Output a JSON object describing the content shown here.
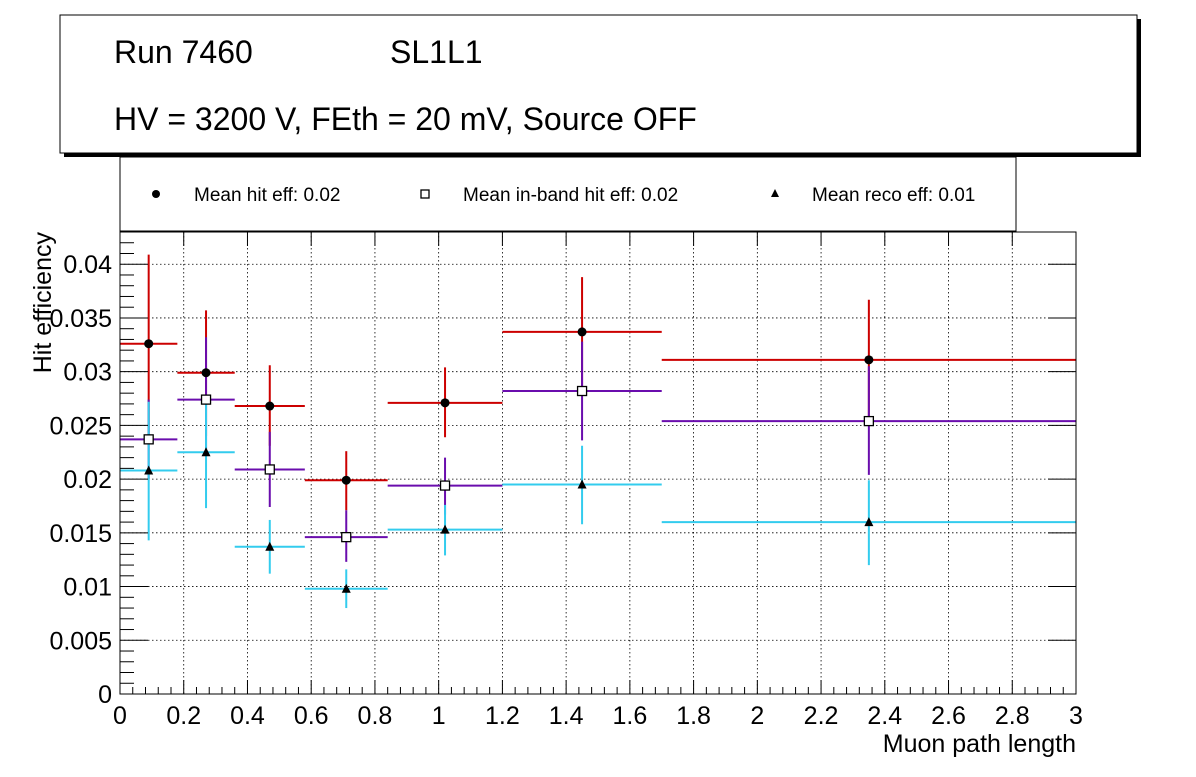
{
  "header": {
    "run_label": "Run 7460",
    "layer_label": "SL1L1",
    "conditions": "HV = 3200 V, FEth = 20 mV, Source OFF"
  },
  "legend": {
    "hit": "Mean hit  eff: 0.02",
    "inband": "Mean in-band hit eff: 0.02",
    "reco": "Mean reco eff: 0.01"
  },
  "chart_data": {
    "type": "scatter",
    "xlabel": "Muon path length",
    "ylabel": "Hit efficiency",
    "xlim": [
      0,
      3
    ],
    "ylim": [
      0,
      0.043
    ],
    "grid": true,
    "xticks": [
      "0",
      "0.2",
      "0.4",
      "0.6",
      "0.8",
      "1",
      "1.2",
      "1.4",
      "1.6",
      "1.8",
      "2",
      "2.2",
      "2.4",
      "2.6",
      "2.8",
      "3"
    ],
    "xtick_values": [
      0,
      0.2,
      0.4,
      0.6,
      0.8,
      1,
      1.2,
      1.4,
      1.6,
      1.8,
      2,
      2.2,
      2.4,
      2.6,
      2.8,
      3
    ],
    "yticks": [
      "0",
      "0.005",
      "0.01",
      "0.015",
      "0.02",
      "0.025",
      "0.03",
      "0.035",
      "0.04"
    ],
    "ytick_values": [
      0,
      0.005,
      0.01,
      0.015,
      0.02,
      0.025,
      0.03,
      0.035,
      0.04
    ],
    "series": [
      {
        "name": "Mean hit  eff: 0.02",
        "marker": "circle",
        "color": "#cc0000",
        "points": [
          {
            "x": 0.09,
            "xlo": 0.0,
            "xhi": 0.18,
            "y": 0.0326,
            "ylo": 0.0242,
            "yhi": 0.0409
          },
          {
            "x": 0.27,
            "xlo": 0.18,
            "xhi": 0.36,
            "y": 0.0299,
            "ylo": 0.024,
            "yhi": 0.0357
          },
          {
            "x": 0.47,
            "xlo": 0.36,
            "xhi": 0.58,
            "y": 0.0268,
            "ylo": 0.0231,
            "yhi": 0.0306
          },
          {
            "x": 0.71,
            "xlo": 0.58,
            "xhi": 0.84,
            "y": 0.0199,
            "ylo": 0.0171,
            "yhi": 0.0226
          },
          {
            "x": 1.02,
            "xlo": 0.84,
            "xhi": 1.2,
            "y": 0.0271,
            "ylo": 0.0239,
            "yhi": 0.0304
          },
          {
            "x": 1.45,
            "xlo": 1.2,
            "xhi": 1.7,
            "y": 0.0337,
            "ylo": 0.0285,
            "yhi": 0.0388
          },
          {
            "x": 2.35,
            "xlo": 1.7,
            "xhi": 3.0,
            "y": 0.0311,
            "ylo": 0.0255,
            "yhi": 0.0367
          }
        ]
      },
      {
        "name": "Mean in-band hit eff: 0.02",
        "marker": "open-square",
        "color": "#6a0dad",
        "points": [
          {
            "x": 0.09,
            "xlo": 0.0,
            "xhi": 0.18,
            "y": 0.0237,
            "ylo": 0.02,
            "yhi": 0.0274
          },
          {
            "x": 0.27,
            "xlo": 0.18,
            "xhi": 0.36,
            "y": 0.0274,
            "ylo": 0.0227,
            "yhi": 0.0332
          },
          {
            "x": 0.47,
            "xlo": 0.36,
            "xhi": 0.58,
            "y": 0.0209,
            "ylo": 0.0174,
            "yhi": 0.0244
          },
          {
            "x": 0.71,
            "xlo": 0.58,
            "xhi": 0.84,
            "y": 0.0146,
            "ylo": 0.0123,
            "yhi": 0.0171
          },
          {
            "x": 1.02,
            "xlo": 0.84,
            "xhi": 1.2,
            "y": 0.0194,
            "ylo": 0.0167,
            "yhi": 0.022
          },
          {
            "x": 1.45,
            "xlo": 1.2,
            "xhi": 1.7,
            "y": 0.0282,
            "ylo": 0.0236,
            "yhi": 0.0328
          },
          {
            "x": 2.35,
            "xlo": 1.7,
            "xhi": 3.0,
            "y": 0.0254,
            "ylo": 0.0204,
            "yhi": 0.0305
          }
        ]
      },
      {
        "name": "Mean reco eff: 0.01",
        "marker": "triangle",
        "color": "#33ccee",
        "points": [
          {
            "x": 0.09,
            "xlo": 0.0,
            "xhi": 0.18,
            "y": 0.0208,
            "ylo": 0.0143,
            "yhi": 0.0272
          },
          {
            "x": 0.27,
            "xlo": 0.18,
            "xhi": 0.36,
            "y": 0.0225,
            "ylo": 0.0173,
            "yhi": 0.0276
          },
          {
            "x": 0.47,
            "xlo": 0.36,
            "xhi": 0.58,
            "y": 0.0137,
            "ylo": 0.0112,
            "yhi": 0.0162
          },
          {
            "x": 0.71,
            "xlo": 0.58,
            "xhi": 0.84,
            "y": 0.0098,
            "ylo": 0.008,
            "yhi": 0.0116
          },
          {
            "x": 1.02,
            "xlo": 0.84,
            "xhi": 1.2,
            "y": 0.0153,
            "ylo": 0.0129,
            "yhi": 0.0176
          },
          {
            "x": 1.45,
            "xlo": 1.2,
            "xhi": 1.7,
            "y": 0.0195,
            "ylo": 0.0158,
            "yhi": 0.0231
          },
          {
            "x": 2.35,
            "xlo": 1.7,
            "xhi": 3.0,
            "y": 0.016,
            "ylo": 0.012,
            "yhi": 0.0199
          }
        ]
      }
    ]
  }
}
